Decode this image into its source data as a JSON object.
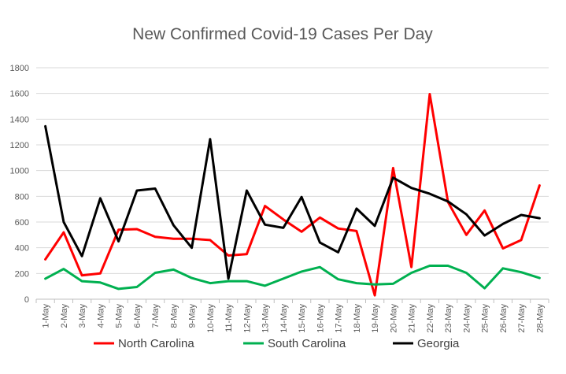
{
  "chart_data": {
    "type": "line",
    "title": "New Confirmed Covid-19 Cases Per Day",
    "xlabel": "",
    "ylabel": "",
    "ylim": [
      0,
      1800
    ],
    "yticks": [
      0,
      200,
      400,
      600,
      800,
      1000,
      1200,
      1400,
      1600,
      1800
    ],
    "grid": true,
    "legend_position": "bottom",
    "categories": [
      "1-May",
      "2-May",
      "3-May",
      "4-May",
      "5-May",
      "6-May",
      "7-May",
      "8-May",
      "9-May",
      "10-May",
      "11-May",
      "12-May",
      "13-May",
      "14-May",
      "15-May",
      "16-May",
      "17-May",
      "18-May",
      "19-May",
      "20-May",
      "21-May",
      "22-May",
      "23-May",
      "24-May",
      "25-May",
      "26-May",
      "27-May",
      "28-May"
    ],
    "series": [
      {
        "name": "North Carolina",
        "color": "#ff0000",
        "values": [
          310,
          520,
          185,
          200,
          540,
          545,
          485,
          470,
          470,
          460,
          340,
          350,
          725,
          620,
          525,
          635,
          550,
          530,
          30,
          1020,
          250,
          1595,
          755,
          500,
          690,
          395,
          460,
          885
        ]
      },
      {
        "name": "South Carolina",
        "color": "#00b050",
        "values": [
          160,
          235,
          140,
          130,
          80,
          95,
          205,
          230,
          165,
          125,
          140,
          140,
          105,
          160,
          215,
          250,
          155,
          125,
          115,
          120,
          205,
          260,
          260,
          205,
          85,
          240,
          210,
          165
        ]
      },
      {
        "name": "Georgia",
        "color": "#000000",
        "values": [
          1345,
          600,
          335,
          785,
          450,
          845,
          860,
          575,
          400,
          1245,
          160,
          845,
          580,
          555,
          795,
          440,
          365,
          705,
          570,
          945,
          865,
          820,
          760,
          660,
          495,
          585,
          655,
          630
        ]
      }
    ]
  }
}
